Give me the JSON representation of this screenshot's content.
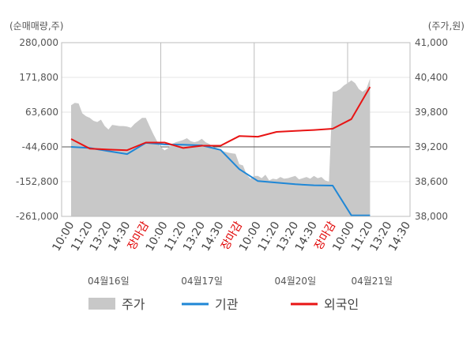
{
  "chart_data": {
    "type": "line",
    "left_unit": "(순매매량,주)",
    "right_unit": "(주가,원)",
    "left_ticks": [
      "280,000",
      "171,800",
      "63,600",
      "-44,600",
      "-152,800",
      "-261,000"
    ],
    "left_ylim": [
      -261000,
      280000
    ],
    "right_ticks": [
      "41,000",
      "40,400",
      "39,800",
      "39,200",
      "38,600",
      "38,000"
    ],
    "right_ylim": [
      38000,
      41000
    ],
    "x_slots": [
      "10:00",
      "11:20",
      "13:20",
      "14:30",
      "장마감",
      "10:00",
      "11:20",
      "13:20",
      "14:30",
      "장마감",
      "10:00",
      "11:20",
      "13:20",
      "14:30",
      "장마감",
      "10:00",
      "11:20",
      "13:20",
      "14:30"
    ],
    "dates": [
      {
        "label": "04월16일",
        "slot": 2
      },
      {
        "label": "04월17일",
        "slot": 7
      },
      {
        "label": "04월20일",
        "slot": 12
      },
      {
        "label": "04월21일",
        "slot": 16.1
      }
    ],
    "zero_line_value": -44600,
    "session_dividers": [
      5,
      10,
      15
    ],
    "series": [
      {
        "name": "주가",
        "kind": "area",
        "axis": "right",
        "color": "#c8c8c8",
        "x": [
          0,
          0.2,
          0.4,
          0.6,
          0.8,
          1.0,
          1.2,
          1.4,
          1.6,
          1.8,
          2.0,
          2.2,
          2.4,
          2.6,
          2.8,
          3.0,
          3.2,
          3.4,
          3.6,
          3.8,
          4.0,
          4.2,
          4.4,
          4.6,
          4.8,
          5.0,
          5.2,
          5.4,
          5.6,
          5.8,
          6.0,
          6.2,
          6.4,
          6.6,
          6.8,
          7.0,
          7.2,
          7.4,
          7.6,
          7.8,
          8.0,
          8.2,
          8.4,
          8.6,
          8.8,
          9.0,
          9.2,
          9.4,
          9.6,
          9.8,
          10.0,
          10.2,
          10.4,
          10.6,
          10.8,
          11.0,
          11.2,
          11.4,
          11.6,
          11.8,
          12.0,
          12.2,
          12.4,
          12.6,
          12.8,
          13.0,
          13.2,
          13.4,
          13.6,
          13.8,
          14.0,
          14.2,
          14.4,
          14.6,
          14.8,
          15.0,
          15.2,
          15.4,
          15.6,
          15.8,
          16.0
        ],
        "values": [
          39920,
          39960,
          39950,
          39780,
          39730,
          39700,
          39650,
          39630,
          39670,
          39560,
          39500,
          39580,
          39570,
          39560,
          39560,
          39550,
          39530,
          39600,
          39650,
          39700,
          39700,
          39560,
          39420,
          39300,
          39200,
          39140,
          39180,
          39250,
          39280,
          39300,
          39320,
          39350,
          39300,
          39280,
          39300,
          39340,
          39280,
          39250,
          39200,
          39180,
          39150,
          39120,
          39100,
          39090,
          39080,
          38900,
          38880,
          38720,
          38650,
          38700,
          38700,
          38660,
          38720,
          38620,
          38650,
          38640,
          38680,
          38650,
          38660,
          38680,
          38700,
          38640,
          38660,
          38680,
          38650,
          38700,
          38660,
          38680,
          38620,
          38600,
          40150,
          40160,
          40200,
          40260,
          40300,
          40350,
          40300,
          40200,
          40150,
          40200,
          40380
        ]
      },
      {
        "name": "기관",
        "kind": "line",
        "axis": "left",
        "color": "#1f87d6",
        "x": [
          0,
          1,
          2,
          3,
          4,
          5,
          6,
          7,
          8,
          9,
          10,
          11,
          12,
          13,
          14,
          15,
          16
        ],
        "values": [
          -44600,
          -48000,
          -58000,
          -67000,
          -32000,
          -37000,
          -38000,
          -40000,
          -54000,
          -114000,
          -151000,
          -156000,
          -161000,
          -164000,
          -165000,
          -258000,
          -258000
        ]
      },
      {
        "name": "외국인",
        "kind": "line",
        "axis": "left",
        "color": "#e81414",
        "x": [
          0,
          1,
          2,
          3,
          4,
          5,
          6,
          7,
          8,
          9,
          10,
          11,
          12,
          13,
          14,
          15,
          16
        ],
        "values": [
          -20000,
          -50000,
          -53000,
          -55000,
          -31000,
          -31000,
          -48000,
          -41000,
          -41000,
          -11000,
          -13000,
          2000,
          5000,
          8000,
          12000,
          42000,
          142000
        ]
      }
    ],
    "grid": true,
    "legend_position": "bottom"
  }
}
